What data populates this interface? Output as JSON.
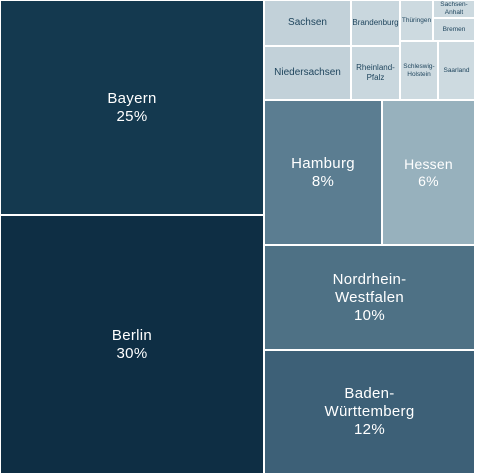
{
  "chart_data": {
    "type": "treemap",
    "items": [
      {
        "name": "Berlin",
        "value": 30,
        "label": "30%",
        "color": "#0e2e44"
      },
      {
        "name": "Bayern",
        "value": 25,
        "label": "25%",
        "color": "#14394f"
      },
      {
        "name": "Baden-\nWürttemberg",
        "value": 12,
        "label": "12%",
        "color": "#3d6077"
      },
      {
        "name": "Nordrhein-\nWestfalen",
        "value": 10,
        "label": "10%",
        "color": "#4e7185"
      },
      {
        "name": "Hamburg",
        "value": 8,
        "label": "8%",
        "color": "#5b7d91"
      },
      {
        "name": "Hessen",
        "value": 6,
        "label": "6%",
        "color": "#97b1bd"
      },
      {
        "name": "Sachsen",
        "value": null,
        "label": "",
        "color": "#c2d1d9"
      },
      {
        "name": "Niedersachsen",
        "value": null,
        "label": "",
        "color": "#c2d1d9"
      },
      {
        "name": "Brandenburg",
        "value": null,
        "label": "",
        "color": "#c9d7de"
      },
      {
        "name": "Rheinland-\nPfalz",
        "value": null,
        "label": "",
        "color": "#c9d7de"
      },
      {
        "name": "Thüringen",
        "value": null,
        "label": "",
        "color": "#cddae0"
      },
      {
        "name": "Sachsen-\nAnhalt",
        "value": null,
        "label": "",
        "color": "#cddae0"
      },
      {
        "name": "Bremen",
        "value": null,
        "label": "",
        "color": "#cddae0"
      },
      {
        "name": "Schleswig-\nHolstein",
        "value": null,
        "label": "",
        "color": "#cddae0"
      },
      {
        "name": "Saarland",
        "value": null,
        "label": "",
        "color": "#cddae0"
      }
    ]
  }
}
